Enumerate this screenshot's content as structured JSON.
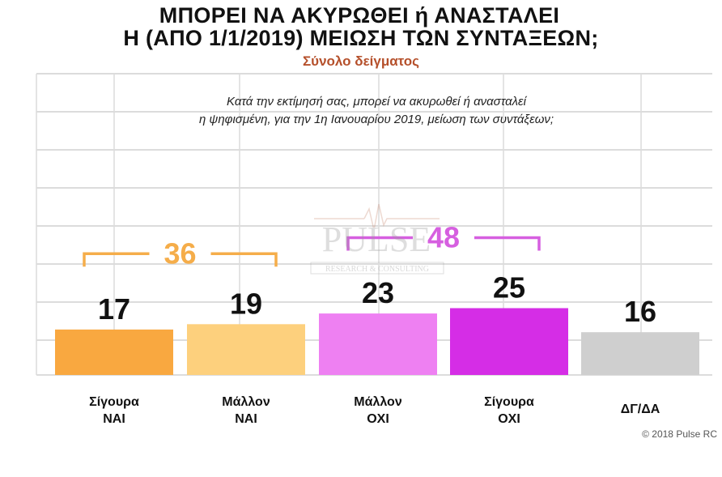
{
  "title_line_1": "ΜΠΟΡΕΙ ΝΑ ΑΚΥΡΩΘΕΙ ή ΑΝΑΣΤΑΛΕΙ",
  "title_line_2": "Η (ΑΠΟ 1/1/2019) ΜΕΙΩΣΗ ΤΩΝ ΣΥΝΤΑΞΕΩΝ;",
  "subtitle": "Σύνολο δείγματος",
  "question_line_1": "Κατά την εκτίμησή σας, μπορεί να ακυρωθεί ή ανασταλεί",
  "question_line_2": "η ψηφισμένη, για την 1η Ιανουαρίου 2019, μείωση των συντάξεων;",
  "copyright": "© 2018 Pulse RC",
  "watermark": {
    "brand": "PULSE",
    "tagline": "RESEARCH & CONSULTING"
  },
  "colors": {
    "grid": "#dcdcdc",
    "yes_group": "#f5ad4a",
    "no_group": "#d65fe0",
    "subtitle": "#b5502b"
  },
  "chart_data": {
    "type": "bar",
    "categories": [
      {
        "line1": "Σίγουρα",
        "line2": "ΝΑΙ"
      },
      {
        "line1": "Μάλλον",
        "line2": "ΝΑΙ"
      },
      {
        "line1": "Μάλλον",
        "line2": "ΟΧΙ"
      },
      {
        "line1": "Σίγουρα",
        "line2": "ΟΧΙ"
      },
      {
        "line1": "ΔΓ/ΔΑ",
        "line2": ""
      }
    ],
    "values": [
      17,
      19,
      23,
      25,
      16
    ],
    "bar_colors": [
      "#f9a840",
      "#fdd07d",
      "#ee80f2",
      "#d52de6",
      "#cfcfcf"
    ],
    "ylim": [
      0,
      100
    ],
    "grid": true,
    "brackets": [
      {
        "label": "36",
        "from_category": 0,
        "to_category": 1,
        "color": "#f5ad4a"
      },
      {
        "label": "48",
        "from_category": 2,
        "to_category": 3,
        "color": "#d65fe0"
      }
    ]
  }
}
